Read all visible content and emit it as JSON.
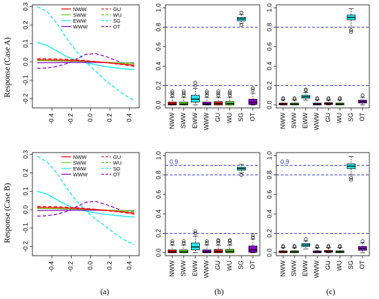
{
  "colors": {
    "NWW": "#ff0000",
    "SWW": "#66dd22",
    "EWW": "#22e8ee",
    "WWW": "#8a00c8",
    "GU": "#ee2222",
    "WU": "#55cc22",
    "SG": "#22e8ee",
    "OT": "#8a00c8",
    "ref": "#1f1fd0"
  },
  "row_labels": [
    "Response (Case A)",
    "Response (Case B)"
  ],
  "panel_labels": [
    "(a)",
    "(b)",
    "(c)"
  ],
  "chart_data": [
    {
      "id": "a-top",
      "type": "line",
      "xlim": [
        -0.6,
        0.5
      ],
      "ylim": [
        -0.25,
        0.31
      ],
      "xticks": [
        "-0.4",
        "-0.2",
        "0.0",
        "0.2",
        "0.4"
      ],
      "yticks": [
        "0.3",
        "0.2",
        "0.1",
        "0.0",
        "-0.1",
        "-0.2"
      ],
      "legend": [
        "NWW",
        "SWW",
        "EWW",
        "WWW",
        "GU",
        "WU",
        "SG",
        "OT"
      ],
      "x": [
        -0.55,
        -0.45,
        -0.35,
        -0.25,
        -0.15,
        -0.05,
        0.05,
        0.15,
        0.25,
        0.35,
        0.45
      ],
      "series": [
        {
          "name": "NWW",
          "style": "solid",
          "values": [
            0.012,
            0.011,
            0.01,
            0.009,
            0.007,
            0.004,
            0.001,
            -0.003,
            -0.008,
            -0.013,
            -0.018
          ]
        },
        {
          "name": "SWW",
          "style": "solid",
          "values": [
            0.006,
            0.006,
            0.005,
            0.004,
            0.003,
            0.002,
            0.0,
            -0.002,
            -0.004,
            -0.006,
            -0.008
          ]
        },
        {
          "name": "EWW",
          "style": "solid",
          "values": [
            0.105,
            0.09,
            0.06,
            0.03,
            0.01,
            -0.005,
            -0.015,
            -0.025,
            -0.032,
            -0.038,
            -0.042
          ]
        },
        {
          "name": "WWW",
          "style": "solid",
          "values": [
            -0.005,
            -0.004,
            -0.004,
            -0.003,
            -0.003,
            -0.003,
            -0.003,
            -0.004,
            -0.004,
            -0.005,
            -0.005
          ]
        },
        {
          "name": "GU",
          "style": "dashed",
          "values": [
            0.018,
            0.017,
            0.016,
            0.014,
            0.011,
            0.007,
            0.002,
            -0.004,
            -0.01,
            -0.017,
            -0.024
          ]
        },
        {
          "name": "WU",
          "style": "dashed",
          "values": [
            0.01,
            0.01,
            0.009,
            0.008,
            0.006,
            0.004,
            0.001,
            -0.002,
            -0.005,
            -0.008,
            -0.011
          ]
        },
        {
          "name": "SG",
          "style": "dashed",
          "values": [
            0.3,
            0.275,
            0.21,
            0.13,
            0.06,
            0.0,
            -0.05,
            -0.1,
            -0.14,
            -0.18,
            -0.21
          ]
        },
        {
          "name": "OT",
          "style": "dashed",
          "values": [
            -0.035,
            -0.033,
            -0.025,
            -0.01,
            0.015,
            0.04,
            0.045,
            0.03,
            0.01,
            -0.01,
            -0.025
          ]
        }
      ]
    },
    {
      "id": "b-top",
      "type": "box",
      "categories": [
        "NWW",
        "SWW",
        "EWW",
        "WWW",
        "GU",
        "WU",
        "SG",
        "OT"
      ],
      "ylim": [
        -0.03,
        1.03
      ],
      "yticks": [
        "0.0",
        "0.2",
        "0.4",
        "0.6",
        "0.8",
        "1.0"
      ],
      "reflines": [
        0.2,
        0.8
      ],
      "ref_labels": [],
      "boxes": [
        {
          "q1": 0.0,
          "med": 0.01,
          "q3": 0.03,
          "lo": 0.0,
          "hi": 0.08,
          "out": [
            0.1,
            0.12,
            0.14
          ]
        },
        {
          "q1": 0.0,
          "med": 0.01,
          "q3": 0.03,
          "lo": 0.0,
          "hi": 0.08,
          "out": [
            0.1,
            0.12,
            0.14
          ]
        },
        {
          "q1": 0.03,
          "med": 0.06,
          "q3": 0.1,
          "lo": 0.0,
          "hi": 0.17,
          "out": [
            0.2,
            0.23
          ]
        },
        {
          "q1": 0.0,
          "med": 0.01,
          "q3": 0.03,
          "lo": 0.0,
          "hi": 0.08,
          "out": [
            0.1,
            0.12,
            0.14
          ]
        },
        {
          "q1": 0.0,
          "med": 0.015,
          "q3": 0.035,
          "lo": 0.0,
          "hi": 0.08,
          "out": [
            0.1,
            0.12,
            0.14
          ]
        },
        {
          "q1": 0.0,
          "med": 0.015,
          "q3": 0.035,
          "lo": 0.0,
          "hi": 0.08,
          "out": [
            0.1,
            0.12,
            0.14
          ]
        },
        {
          "q1": 0.865,
          "med": 0.885,
          "q3": 0.9,
          "lo": 0.84,
          "hi": 0.93,
          "out": [
            0.82,
            0.95
          ]
        },
        {
          "q1": 0.005,
          "med": 0.025,
          "q3": 0.06,
          "lo": 0.0,
          "hi": 0.12,
          "out": [
            0.15,
            0.17
          ]
        }
      ]
    },
    {
      "id": "c-top",
      "type": "box",
      "categories": [
        "NWW",
        "SWW",
        "EWW",
        "WWW",
        "GU",
        "WU",
        "SG",
        "OT"
      ],
      "ylim": [
        -0.03,
        1.03
      ],
      "yticks": [
        "0.0",
        "0.2",
        "0.4",
        "0.6",
        "0.8",
        "1.0"
      ],
      "reflines": [
        0.2,
        0.8
      ],
      "ref_labels": [],
      "boxes": [
        {
          "q1": 0.0,
          "med": 0.01,
          "q3": 0.02,
          "lo": 0.0,
          "hi": 0.05,
          "out": [
            0.06,
            0.07
          ]
        },
        {
          "q1": 0.0,
          "med": 0.01,
          "q3": 0.02,
          "lo": 0.0,
          "hi": 0.05,
          "out": [
            0.06,
            0.07
          ]
        },
        {
          "q1": 0.07,
          "med": 0.085,
          "q3": 0.1,
          "lo": 0.05,
          "hi": 0.13,
          "out": [
            0.15,
            0.16
          ]
        },
        {
          "q1": 0.0,
          "med": 0.01,
          "q3": 0.02,
          "lo": 0.0,
          "hi": 0.05,
          "out": [
            0.06,
            0.07
          ]
        },
        {
          "q1": 0.005,
          "med": 0.015,
          "q3": 0.025,
          "lo": 0.0,
          "hi": 0.05,
          "out": [
            0.06,
            0.07
          ]
        },
        {
          "q1": 0.0,
          "med": 0.01,
          "q3": 0.02,
          "lo": 0.0,
          "hi": 0.05,
          "out": [
            0.06,
            0.07
          ]
        },
        {
          "q1": 0.875,
          "med": 0.9,
          "q3": 0.925,
          "lo": 0.8,
          "hi": 0.99,
          "out": [
            0.77,
            0.75
          ]
        },
        {
          "q1": 0.02,
          "med": 0.035,
          "q3": 0.05,
          "lo": 0.0,
          "hi": 0.08,
          "out": [
            0.1
          ]
        }
      ]
    },
    {
      "id": "a-bottom",
      "type": "line",
      "xlim": [
        -0.6,
        0.5
      ],
      "ylim": [
        -0.25,
        0.31
      ],
      "xticks": [
        "-0.4",
        "-0.2",
        "0.0",
        "0.2",
        "0.4"
      ],
      "yticks": [
        "0.3",
        "0.2",
        "0.1",
        "0.0",
        "-0.1",
        "-0.2"
      ],
      "legend": [
        "NWW",
        "SWW",
        "EWW",
        "WWW",
        "GU",
        "WU",
        "SG",
        "OT"
      ],
      "x": [
        -0.55,
        -0.45,
        -0.35,
        -0.25,
        -0.15,
        -0.05,
        0.05,
        0.15,
        0.25,
        0.35,
        0.45
      ],
      "series": [
        {
          "name": "NWW",
          "style": "solid",
          "values": [
            0.012,
            0.011,
            0.01,
            0.009,
            0.007,
            0.004,
            0.001,
            -0.003,
            -0.008,
            -0.013,
            -0.018
          ]
        },
        {
          "name": "SWW",
          "style": "solid",
          "values": [
            0.006,
            0.006,
            0.005,
            0.004,
            0.003,
            0.002,
            0.0,
            -0.002,
            -0.004,
            -0.006,
            -0.008
          ]
        },
        {
          "name": "EWW",
          "style": "solid",
          "values": [
            0.1,
            0.085,
            0.055,
            0.025,
            0.005,
            -0.008,
            -0.018,
            -0.025,
            -0.031,
            -0.036,
            -0.04
          ]
        },
        {
          "name": "WWW",
          "style": "solid",
          "values": [
            -0.005,
            -0.004,
            -0.004,
            -0.003,
            -0.003,
            -0.003,
            -0.003,
            -0.004,
            -0.004,
            -0.005,
            -0.005
          ]
        },
        {
          "name": "GU",
          "style": "dashed",
          "values": [
            0.018,
            0.017,
            0.016,
            0.014,
            0.011,
            0.007,
            0.002,
            -0.004,
            -0.01,
            -0.017,
            -0.024
          ]
        },
        {
          "name": "WU",
          "style": "dashed",
          "values": [
            0.01,
            0.01,
            0.009,
            0.008,
            0.006,
            0.004,
            0.001,
            -0.002,
            -0.005,
            -0.008,
            -0.011
          ]
        },
        {
          "name": "SG",
          "style": "dashed",
          "values": [
            0.29,
            0.26,
            0.2,
            0.12,
            0.05,
            -0.005,
            -0.05,
            -0.09,
            -0.13,
            -0.165,
            -0.19
          ]
        },
        {
          "name": "OT",
          "style": "dashed",
          "values": [
            -0.035,
            -0.033,
            -0.025,
            -0.01,
            0.015,
            0.04,
            0.045,
            0.03,
            0.01,
            -0.01,
            -0.025
          ]
        }
      ]
    },
    {
      "id": "b-bottom",
      "type": "box",
      "categories": [
        "NWW",
        "SWW",
        "EWW",
        "WWW",
        "GU",
        "WU",
        "SG",
        "OT"
      ],
      "ylim": [
        -0.03,
        1.03
      ],
      "yticks": [
        "0.0",
        "0.2",
        "0.4",
        "0.6",
        "0.8",
        "1.0"
      ],
      "reflines": [
        0.2,
        0.8,
        0.9
      ],
      "ref_labels": [
        "0.9"
      ],
      "boxes": [
        {
          "q1": 0.0,
          "med": 0.01,
          "q3": 0.03,
          "lo": 0.0,
          "hi": 0.08,
          "out": [
            0.1,
            0.12
          ]
        },
        {
          "q1": 0.0,
          "med": 0.01,
          "q3": 0.03,
          "lo": 0.0,
          "hi": 0.08,
          "out": [
            0.1,
            0.12
          ]
        },
        {
          "q1": 0.03,
          "med": 0.06,
          "q3": 0.1,
          "lo": 0.0,
          "hi": 0.17,
          "out": [
            0.2,
            0.22
          ]
        },
        {
          "q1": 0.0,
          "med": 0.01,
          "q3": 0.03,
          "lo": 0.0,
          "hi": 0.08,
          "out": [
            0.1,
            0.12
          ]
        },
        {
          "q1": 0.0,
          "med": 0.015,
          "q3": 0.035,
          "lo": 0.0,
          "hi": 0.08,
          "out": [
            0.1,
            0.12,
            0.13
          ]
        },
        {
          "q1": 0.0,
          "med": 0.015,
          "q3": 0.035,
          "lo": 0.0,
          "hi": 0.08,
          "out": [
            0.1,
            0.12,
            0.13
          ]
        },
        {
          "q1": 0.85,
          "med": 0.865,
          "q3": 0.88,
          "lo": 0.82,
          "hi": 0.91,
          "out": [
            0.8
          ]
        },
        {
          "q1": 0.005,
          "med": 0.03,
          "q3": 0.07,
          "lo": 0.0,
          "hi": 0.14,
          "out": [
            0.16,
            0.18
          ]
        }
      ]
    },
    {
      "id": "c-bottom",
      "type": "box",
      "categories": [
        "NWW",
        "SWW",
        "EWW",
        "WWW",
        "GU",
        "WU",
        "SG",
        "OT"
      ],
      "ylim": [
        -0.03,
        1.03
      ],
      "yticks": [
        "0.0",
        "0.2",
        "0.4",
        "0.6",
        "0.8",
        "1.0"
      ],
      "reflines": [
        0.2,
        0.8,
        0.9
      ],
      "ref_labels": [
        "0.9"
      ],
      "boxes": [
        {
          "q1": 0.0,
          "med": 0.01,
          "q3": 0.02,
          "lo": 0.0,
          "hi": 0.05,
          "out": [
            0.06,
            0.07
          ]
        },
        {
          "q1": 0.0,
          "med": 0.01,
          "q3": 0.02,
          "lo": 0.0,
          "hi": 0.05,
          "out": [
            0.06,
            0.07
          ]
        },
        {
          "q1": 0.065,
          "med": 0.08,
          "q3": 0.095,
          "lo": 0.04,
          "hi": 0.12,
          "out": [
            0.14
          ]
        },
        {
          "q1": 0.0,
          "med": 0.01,
          "q3": 0.02,
          "lo": 0.0,
          "hi": 0.05,
          "out": [
            0.06,
            0.07
          ]
        },
        {
          "q1": 0.005,
          "med": 0.015,
          "q3": 0.025,
          "lo": 0.0,
          "hi": 0.05,
          "out": [
            0.06,
            0.07
          ]
        },
        {
          "q1": 0.0,
          "med": 0.01,
          "q3": 0.02,
          "lo": 0.0,
          "hi": 0.05,
          "out": [
            0.06,
            0.07
          ]
        },
        {
          "q1": 0.865,
          "med": 0.89,
          "q3": 0.915,
          "lo": 0.8,
          "hi": 0.99,
          "out": [
            0.77,
            0.75
          ]
        },
        {
          "q1": 0.025,
          "med": 0.045,
          "q3": 0.065,
          "lo": 0.0,
          "hi": 0.1,
          "out": [
            0.12
          ]
        }
      ]
    }
  ]
}
